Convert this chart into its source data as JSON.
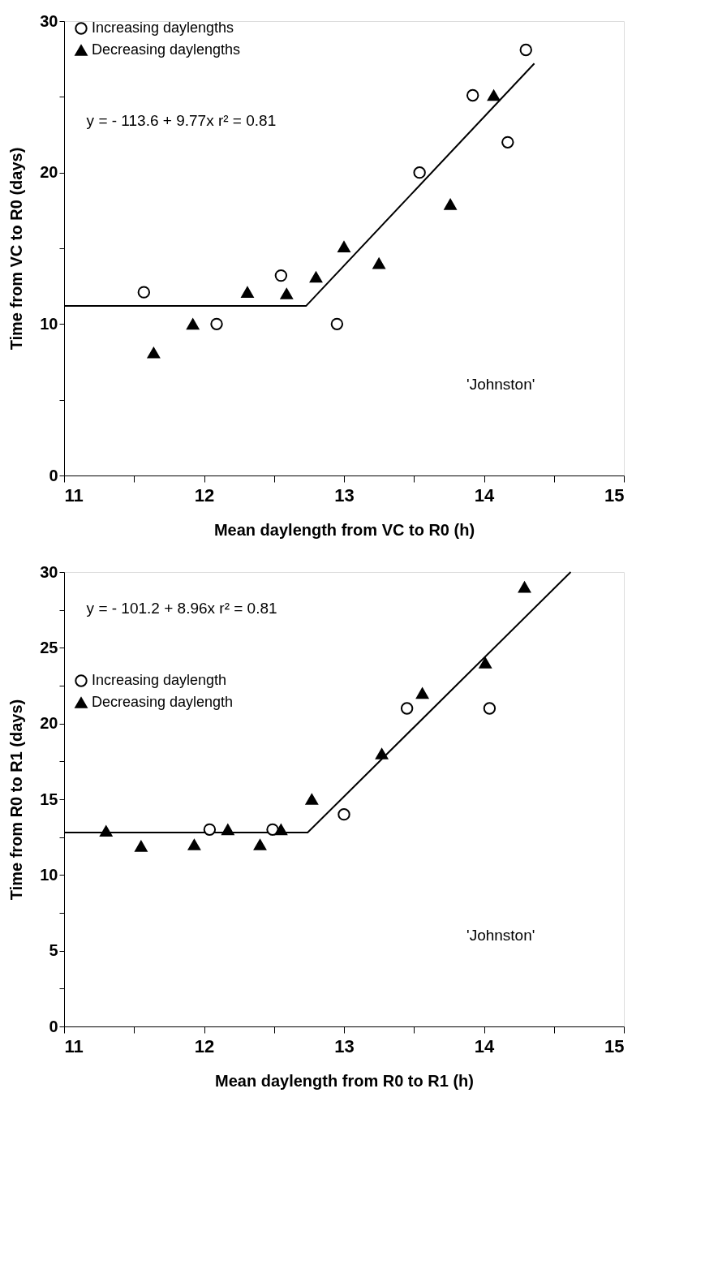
{
  "chart_data": [
    {
      "type": "scatter",
      "xlabel": "Mean daylength from VC to R0 (h)",
      "ylabel": "Time from VC to R0 (days)",
      "xlim": [
        11,
        15
      ],
      "xticks": [
        11,
        {
          "value": 11.5,
          "label": null
        },
        12,
        {
          "value": 12.5,
          "label": null
        },
        13,
        {
          "value": 13.5,
          "label": null
        },
        14,
        {
          "value": 14.5,
          "label": null
        },
        15
      ],
      "ylim": [
        0,
        30
      ],
      "yticks": [
        0,
        {
          "value": 5,
          "label": null
        },
        10,
        {
          "value": 15,
          "label": null
        },
        20,
        {
          "value": 25,
          "label": null
        },
        30
      ],
      "grid": false,
      "legend": "top left",
      "annotations": [
        "y =  - 113.6 + 9.77x      r² = 0.81",
        "'Johnston'"
      ],
      "series": [
        {
          "name": "Increasing daylengths",
          "color": "#000000",
          "marker": "circle",
          "x": [
            11.57,
            12.09,
            12.55,
            12.95,
            13.54,
            13.92,
            14.17,
            14.3
          ],
          "values": [
            12.1,
            10.0,
            13.2,
            10.0,
            20.0,
            25.1,
            22.0,
            28.1
          ]
        },
        {
          "name": "Decreasing daylengths",
          "color": "#000000",
          "marker": "triangle",
          "x": [
            11.64,
            11.92,
            12.31,
            12.59,
            12.8,
            13.0,
            13.25,
            13.76,
            14.07
          ],
          "values": [
            8.1,
            10.0,
            12.1,
            12.0,
            13.1,
            15.1,
            14.0,
            17.9,
            25.1
          ]
        },
        {
          "type": "line",
          "color": "#000000",
          "marker": "none",
          "x": [
            11,
            12.73,
            14.36
          ],
          "values": [
            11.2,
            11.2,
            27.2
          ]
        }
      ]
    },
    {
      "type": "scatter",
      "xlabel": "Mean daylength from R0 to R1 (h)",
      "ylabel": "Time from R0 to R1 (days)",
      "xlim": [
        11,
        15
      ],
      "xticks": [
        11,
        {
          "value": 11.5,
          "label": null
        },
        12,
        {
          "value": 12.5,
          "label": null
        },
        13,
        {
          "value": 13.5,
          "label": null
        },
        14,
        {
          "value": 14.5,
          "label": null
        },
        15
      ],
      "ylim": [
        0,
        30
      ],
      "yticks": [
        0,
        {
          "value": 2.5,
          "label": null
        },
        5,
        {
          "value": 7.5,
          "label": null
        },
        10,
        {
          "value": 12.5,
          "label": null
        },
        15,
        {
          "value": 17.5,
          "label": null
        },
        20,
        {
          "value": 22.5,
          "label": null
        },
        25,
        {
          "value": 27.5,
          "label": null
        },
        30
      ],
      "grid": false,
      "legend": "top left",
      "annotations": [
        "y =  - 101.2 + 8.96x      r² = 0.81",
        "'Johnston'"
      ],
      "series": [
        {
          "name": "Increasing daylength",
          "color": "#000000",
          "marker": "circle",
          "x": [
            12.04,
            12.49,
            13.0,
            13.45,
            14.04
          ],
          "values": [
            13.0,
            13.0,
            14.0,
            21.0,
            21.0
          ]
        },
        {
          "name": "Decreasing daylength",
          "color": "#000000",
          "marker": "triangle",
          "x": [
            11.3,
            11.55,
            11.93,
            12.17,
            12.4,
            12.55,
            12.77,
            13.27,
            13.56,
            14.01,
            14.29
          ],
          "values": [
            12.9,
            11.9,
            12.0,
            13.0,
            12.0,
            13.0,
            15.0,
            18.0,
            22.0,
            24.0,
            29.0
          ]
        },
        {
          "type": "line",
          "color": "#000000",
          "marker": "none",
          "x": [
            11,
            12.74,
            14.62
          ],
          "values": [
            12.8,
            12.8,
            30.0
          ]
        }
      ]
    }
  ]
}
